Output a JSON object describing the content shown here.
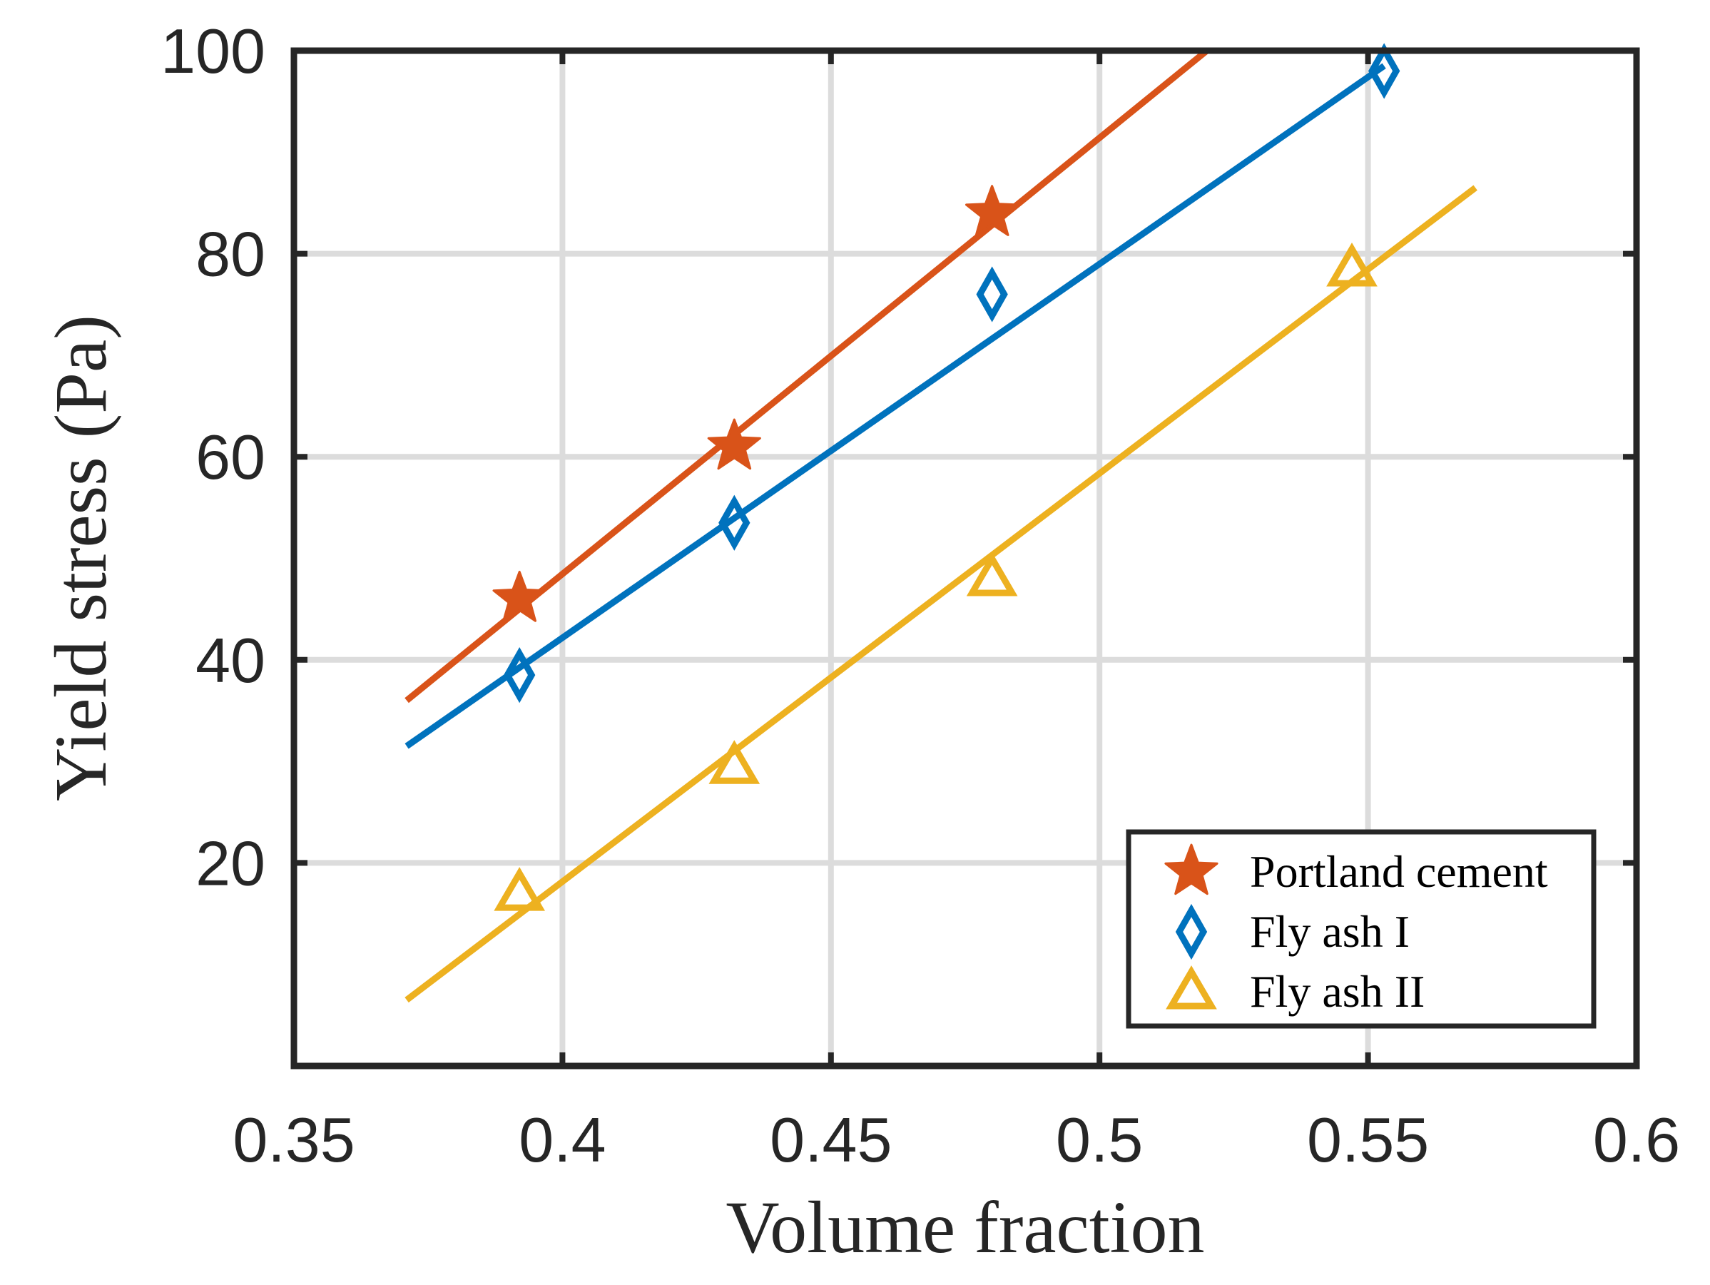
{
  "chart_data": {
    "type": "scatter",
    "title": "",
    "xlabel": "Volume fraction",
    "ylabel": "Yield stress (Pa)",
    "xlim": [
      0.35,
      0.6
    ],
    "ylim": [
      0,
      100
    ],
    "xticks": [
      0.35,
      0.4,
      0.45,
      0.5,
      0.55,
      0.6
    ],
    "xtick_labels": [
      "0.35",
      "0.4",
      "0.45",
      "0.5",
      "0.55",
      "0.6"
    ],
    "yticks": [
      20,
      40,
      60,
      80,
      100
    ],
    "ytick_labels": [
      "20",
      "40",
      "60",
      "80",
      "100"
    ],
    "grid": true,
    "legend_position": "bottom-right",
    "series": [
      {
        "name": "Portland cement",
        "marker": "star",
        "color": "#D95319",
        "x": [
          0.392,
          0.432,
          0.48
        ],
        "y": [
          46,
          61,
          84
        ],
        "fit_line": {
          "x": [
            0.371,
            0.52
          ],
          "y": [
            36,
            100
          ]
        }
      },
      {
        "name": "Fly ash I",
        "marker": "diamond",
        "color": "#0072BD",
        "x": [
          0.392,
          0.432,
          0.48,
          0.553
        ],
        "y": [
          38.5,
          53.5,
          76,
          98
        ],
        "fit_line": {
          "x": [
            0.371,
            0.553
          ],
          "y": [
            31.5,
            98.5
          ]
        }
      },
      {
        "name": "Fly ash II",
        "marker": "triangle",
        "color": "#EDB120",
        "x": [
          0.392,
          0.432,
          0.48,
          0.547
        ],
        "y": [
          17,
          29.5,
          48,
          78.5
        ],
        "fit_line": {
          "x": [
            0.371,
            0.57
          ],
          "y": [
            6.5,
            86.5
          ]
        }
      }
    ]
  }
}
